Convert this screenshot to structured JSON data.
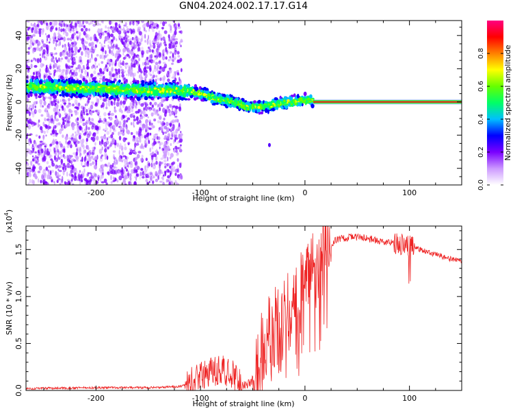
{
  "title": "GN04.2024.002.17.17.G14",
  "chart_data": [
    {
      "type": "heatmap",
      "xlabel": "Height of straight line (km)",
      "ylabel": "Frequency (Hz)",
      "xlim": [
        -267,
        150
      ],
      "ylim": [
        -50,
        49
      ],
      "xticks": [
        -200,
        -100,
        0,
        100
      ],
      "yticks": [
        -40,
        -20,
        0,
        20,
        40
      ],
      "colorbar": {
        "label": "Normalized spectral amplitude",
        "range": [
          0,
          1
        ],
        "ticks": [
          "0.0",
          "0.2",
          "0.4",
          "0.6",
          "0.8"
        ],
        "colors": [
          "#ffffff",
          "#cc99ff",
          "#7a00ff",
          "#0000ff",
          "#00bfff",
          "#00ff66",
          "#66ff00",
          "#ffff00",
          "#ff8000",
          "#ff0000",
          "#ff0080"
        ]
      },
      "ridge": [
        {
          "x": -265,
          "y": 9
        },
        {
          "x": -240,
          "y": 9
        },
        {
          "x": -215,
          "y": 8
        },
        {
          "x": -190,
          "y": 8
        },
        {
          "x": -165,
          "y": 7
        },
        {
          "x": -140,
          "y": 7
        },
        {
          "x": -120,
          "y": 7
        },
        {
          "x": -100,
          "y": 5
        },
        {
          "x": -85,
          "y": 2
        },
        {
          "x": -70,
          "y": 0
        },
        {
          "x": -55,
          "y": -3
        },
        {
          "x": -40,
          "y": -3
        },
        {
          "x": -25,
          "y": -1
        },
        {
          "x": -10,
          "y": 0
        },
        {
          "x": 0,
          "y": 1
        },
        {
          "x": 8,
          "y": 1
        }
      ],
      "carrier": {
        "x_start": 8,
        "x_end": 150,
        "y": 0
      }
    },
    {
      "type": "line",
      "xlabel": "Height of straight line (km)",
      "ylabel": "SNR (10 * v/v)",
      "multiplier": "(x10",
      "multiplier_exp": "4",
      "multiplier_close": ")",
      "xlim": [
        -267,
        150
      ],
      "ylim": [
        0,
        1.75
      ],
      "xticks": [
        -200,
        -100,
        0,
        100
      ],
      "yticks": [
        "0.0",
        "0.5",
        "1.0",
        "1.5"
      ],
      "series": [
        {
          "color": "#ee2222",
          "points": [
            {
              "x": -267,
              "y": 0.02
            },
            {
              "x": -200,
              "y": 0.03
            },
            {
              "x": -150,
              "y": 0.03
            },
            {
              "x": -120,
              "y": 0.04
            },
            {
              "x": -110,
              "y": 0.08
            },
            {
              "x": -100,
              "y": 0.14
            },
            {
              "x": -90,
              "y": 0.2
            },
            {
              "x": -80,
              "y": 0.22
            },
            {
              "x": -70,
              "y": 0.18
            },
            {
              "x": -65,
              "y": 0.1
            },
            {
              "x": -60,
              "y": 0.05
            },
            {
              "x": -52,
              "y": 0.08
            },
            {
              "x": -45,
              "y": 0.3
            },
            {
              "x": -38,
              "y": 0.55
            },
            {
              "x": -30,
              "y": 0.7
            },
            {
              "x": -20,
              "y": 0.82
            },
            {
              "x": -10,
              "y": 0.95
            },
            {
              "x": 0,
              "y": 1.15
            },
            {
              "x": 10,
              "y": 1.35
            },
            {
              "x": 20,
              "y": 1.52
            },
            {
              "x": 30,
              "y": 1.6
            },
            {
              "x": 45,
              "y": 1.64
            },
            {
              "x": 60,
              "y": 1.62
            },
            {
              "x": 75,
              "y": 1.58
            },
            {
              "x": 90,
              "y": 1.56
            },
            {
              "x": 100,
              "y": 1.54
            },
            {
              "x": 110,
              "y": 1.5
            },
            {
              "x": 125,
              "y": 1.45
            },
            {
              "x": 140,
              "y": 1.4
            },
            {
              "x": 150,
              "y": 1.37
            }
          ]
        }
      ]
    }
  ]
}
